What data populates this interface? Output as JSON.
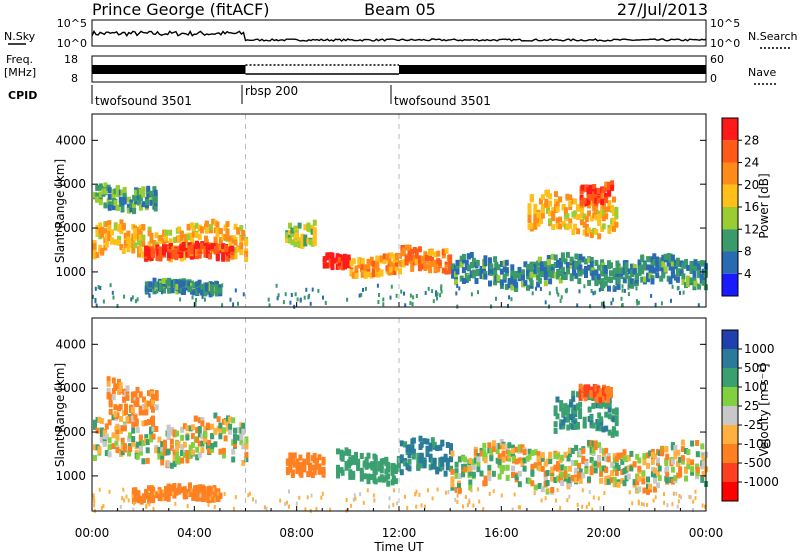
{
  "header": {
    "station": "Prince George (fitACF)",
    "beam": "Beam 05",
    "date": "27/Jul/2013"
  },
  "summary_panels": {
    "nsky_label": "N.Sky",
    "nsearch_label": "N.Search",
    "noise_ticks": [
      "10^5",
      "10^0"
    ],
    "freq_label_line1": "Freq.",
    "freq_label_line2": "[MHz]",
    "freq_ticks": [
      "18",
      "8"
    ],
    "nave_label": "Nave",
    "nave_ticks": [
      "60",
      "0"
    ],
    "cpid_label": "CPID",
    "cpid_segments": [
      {
        "label": "twofsound 3501",
        "start_hour": 0,
        "end_hour": 6
      },
      {
        "label": "rbsp 200",
        "start_hour": 6,
        "end_hour": 12
      },
      {
        "label": "twofsound 3501",
        "start_hour": 12,
        "end_hour": 24
      }
    ]
  },
  "power_colorbar": {
    "label": "Power [dB]",
    "ticks": [
      "28",
      "24",
      "20",
      "16",
      "12",
      "8",
      "4"
    ],
    "colors": [
      "#ff1a1a",
      "#ff5a1a",
      "#ff8c1a",
      "#ffc01a",
      "#9acd32",
      "#3a9a6a",
      "#2a6ab0",
      "#1a1aff"
    ]
  },
  "velocity_colorbar": {
    "label": "Velocity [m s⁻¹]",
    "ticks": [
      "1000",
      "500",
      "100",
      "25",
      "-25",
      "-100",
      "-500",
      "-1000"
    ],
    "colors": [
      "#2040b0",
      "#2a7a9a",
      "#3aa070",
      "#80d040",
      "#c8c8c8",
      "#ffb040",
      "#ff8020",
      "#ff4020",
      "#ff0000"
    ]
  },
  "axes": {
    "ylabel": "Slant Range [km]",
    "xlabel": "Time UT",
    "yticks": [
      "4000",
      "3000",
      "2000",
      "1000"
    ],
    "xticks": [
      "00:00",
      "04:00",
      "08:00",
      "12:00",
      "16:00",
      "20:00",
      "00:00"
    ]
  },
  "chart_data": [
    {
      "type": "heatmap",
      "title": "",
      "variable": "Power",
      "xlabel": "Time UT",
      "ylabel": "Slant Range [km]",
      "xlim_hours": [
        0,
        24
      ],
      "ylim": [
        200,
        4600
      ],
      "color_range": [
        0,
        30
      ],
      "units": "dB",
      "echo_bands": [
        {
          "t_start": 0.0,
          "t_end": 6.0,
          "range_center": 1700,
          "range_width": 700,
          "power": 18
        },
        {
          "t_start": 2.0,
          "t_end": 5.5,
          "range_center": 1450,
          "range_width": 300,
          "power": 26
        },
        {
          "t_start": 0.0,
          "t_end": 2.5,
          "range_center": 2700,
          "range_width": 500,
          "power": 10
        },
        {
          "t_start": 2.0,
          "t_end": 5.0,
          "range_center": 650,
          "range_width": 250,
          "power": 8
        },
        {
          "t_start": 7.5,
          "t_end": 8.7,
          "range_center": 1900,
          "range_width": 500,
          "power": 14
        },
        {
          "t_start": 9.0,
          "t_end": 10.0,
          "range_center": 1200,
          "range_width": 300,
          "power": 28
        },
        {
          "t_start": 10.0,
          "t_end": 12.0,
          "range_center": 1150,
          "range_width": 400,
          "power": 20
        },
        {
          "t_start": 12.0,
          "t_end": 14.0,
          "range_center": 1300,
          "range_width": 500,
          "power": 22
        },
        {
          "t_start": 14.0,
          "t_end": 24.0,
          "range_center": 1000,
          "range_width": 600,
          "power": 8
        },
        {
          "t_start": 17.0,
          "t_end": 20.5,
          "range_center": 2300,
          "range_width": 800,
          "power": 18
        },
        {
          "t_start": 19.0,
          "t_end": 20.3,
          "range_center": 2800,
          "range_width": 400,
          "power": 26
        }
      ]
    },
    {
      "type": "heatmap",
      "title": "",
      "variable": "Velocity",
      "xlabel": "Time UT",
      "ylabel": "Slant Range [km]",
      "xlim_hours": [
        0,
        24
      ],
      "ylim": [
        200,
        4600
      ],
      "color_range": [
        -1000,
        1000
      ],
      "units": "m s-1",
      "echo_bands": [
        {
          "t_start": 0.0,
          "t_end": 6.0,
          "range_center": 1800,
          "range_width": 900,
          "velocity": 0
        },
        {
          "t_start": 0.5,
          "t_end": 2.5,
          "range_center": 2700,
          "range_width": 800,
          "velocity": -200
        },
        {
          "t_start": 1.5,
          "t_end": 5.0,
          "range_center": 600,
          "range_width": 300,
          "velocity": -300
        },
        {
          "t_start": 7.5,
          "t_end": 9.0,
          "range_center": 1300,
          "range_width": 500,
          "velocity": -300
        },
        {
          "t_start": 9.5,
          "t_end": 12.0,
          "range_center": 1200,
          "range_width": 600,
          "velocity": 300
        },
        {
          "t_start": 12.0,
          "t_end": 14.0,
          "range_center": 1400,
          "range_width": 700,
          "velocity": 600
        },
        {
          "t_start": 14.0,
          "t_end": 24.0,
          "range_center": 1200,
          "range_width": 900,
          "velocity": 0
        },
        {
          "t_start": 18.0,
          "t_end": 20.5,
          "range_center": 2400,
          "range_width": 800,
          "velocity": 400
        },
        {
          "t_start": 19.0,
          "t_end": 20.3,
          "range_center": 2900,
          "range_width": 300,
          "velocity": -400
        }
      ]
    }
  ]
}
